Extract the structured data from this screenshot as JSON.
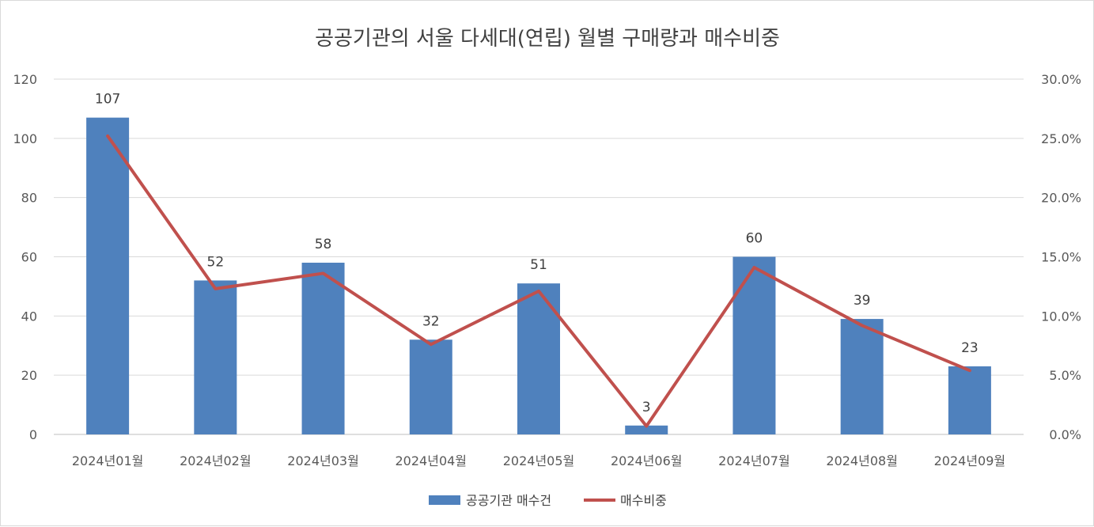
{
  "chart_data": {
    "type": "bar",
    "title": "공공기관의 서울 다세대(연립) 월별 구매량과 매수비중",
    "categories": [
      "2024년01월",
      "2024년02월",
      "2024년03월",
      "2024년04월",
      "2024년05월",
      "2024년06월",
      "2024년07월",
      "2024년08월",
      "2024년09월"
    ],
    "series": [
      {
        "name": "공공기관 매수건",
        "type": "bar",
        "axis": "left",
        "color": "#4f81bd",
        "values": [
          107,
          52,
          58,
          32,
          51,
          3,
          60,
          39,
          23
        ]
      },
      {
        "name": "매수비중",
        "type": "line",
        "axis": "right",
        "color": "#c0504d",
        "values": [
          25.2,
          12.3,
          13.6,
          7.6,
          12.1,
          0.7,
          14.1,
          9.2,
          5.4
        ]
      }
    ],
    "y_left": {
      "min": 0,
      "max": 120,
      "ticks": [
        "0",
        "20",
        "40",
        "60",
        "80",
        "100",
        "120"
      ]
    },
    "y_right": {
      "min": 0,
      "max": 30,
      "ticks": [
        "0.0%",
        "5.0%",
        "10.0%",
        "15.0%",
        "20.0%",
        "25.0%",
        "30.0%"
      ]
    },
    "data_labels": [
      "107",
      "52",
      "58",
      "32",
      "51",
      "3",
      "60",
      "39",
      "23"
    ],
    "grid": true,
    "legend_position": "bottom"
  }
}
